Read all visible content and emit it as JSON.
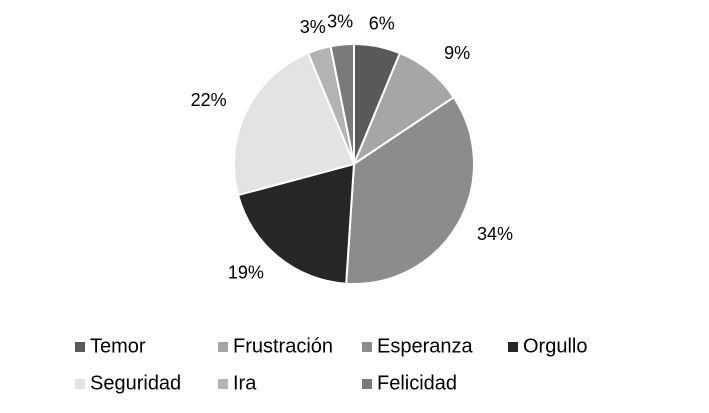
{
  "chart_data": {
    "type": "pie",
    "categories": [
      "Temor",
      "Frustración",
      "Esperanza",
      "Orgullo",
      "Seguridad",
      "Ira",
      "Felicidad"
    ],
    "values": [
      6,
      9,
      34,
      19,
      22,
      3,
      3
    ],
    "value_labels": [
      "6%",
      "9%",
      "34%",
      "19%",
      "22%",
      "3%",
      "3%"
    ],
    "colors": [
      "#595959",
      "#a6a6a6",
      "#8c8c8c",
      "#262626",
      "#e3e3e3",
      "#b3b3b3",
      "#7a7a7a"
    ],
    "legend": "bottom"
  }
}
